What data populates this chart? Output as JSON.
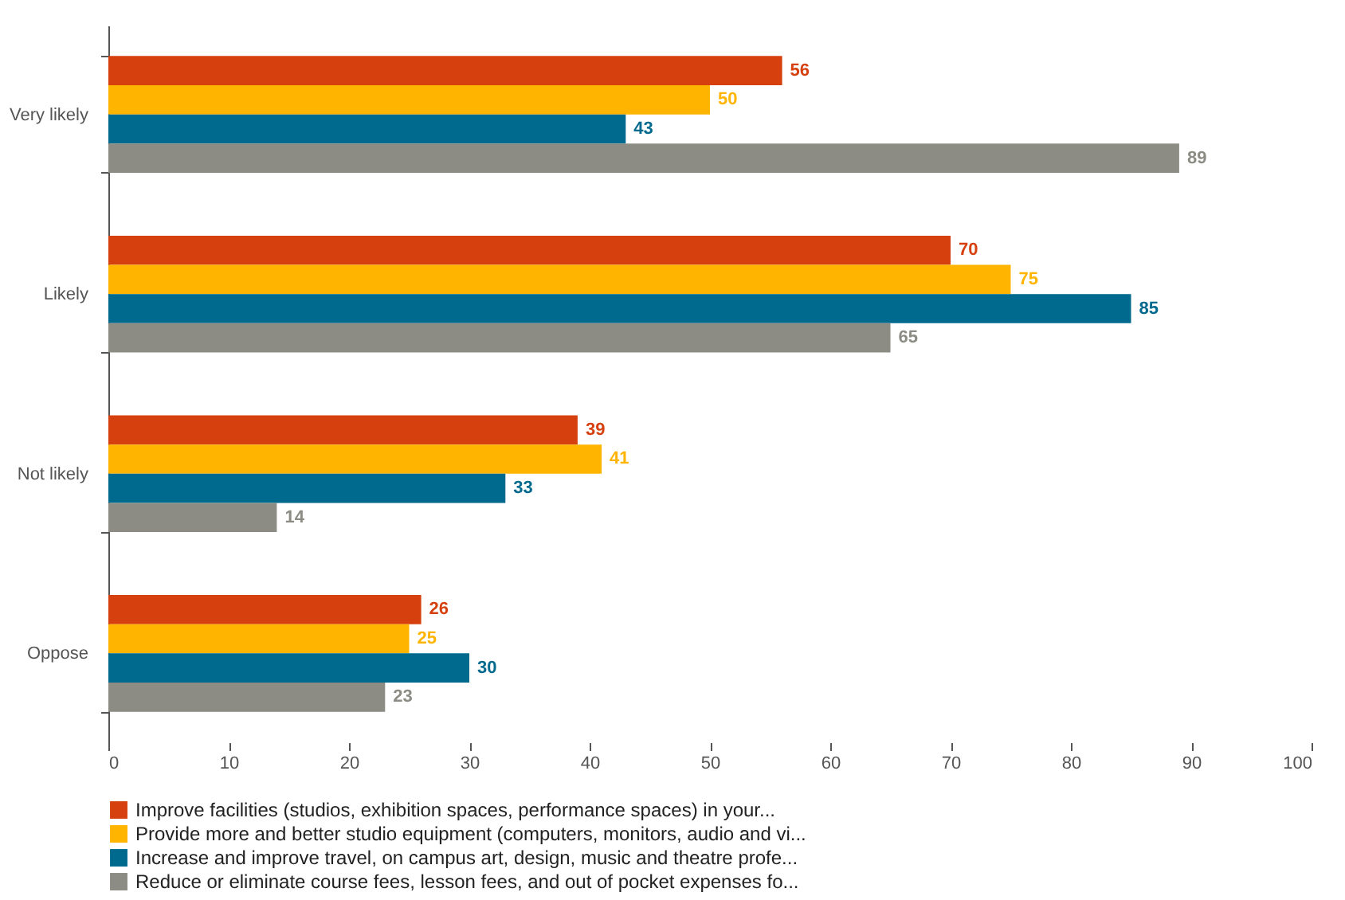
{
  "chart_data": {
    "type": "bar",
    "orientation": "horizontal",
    "categories": [
      "Very likely",
      "Likely",
      "Not likely",
      "Oppose"
    ],
    "series": [
      {
        "name": "Improve facilities (studios, exhibition spaces, performance spaces) in your...",
        "color": "#d6400e",
        "values": [
          56,
          70,
          39,
          26
        ]
      },
      {
        "name": "Provide more and better studio equipment (computers, monitors, audio and vi...",
        "color": "#ffb400",
        "values": [
          50,
          75,
          41,
          25
        ]
      },
      {
        "name": "Increase and improve travel, on campus art, design, music and theatre profe...",
        "color": "#006a8e",
        "values": [
          43,
          85,
          33,
          30
        ]
      },
      {
        "name": "Reduce or eliminate course fees, lesson fees, and out of pocket expenses fo...",
        "color": "#8c8c84",
        "values": [
          89,
          65,
          14,
          23
        ]
      }
    ],
    "xlim": [
      0,
      100
    ],
    "xticks": [
      0,
      10,
      20,
      30,
      40,
      50,
      60,
      70,
      80,
      90,
      100
    ],
    "data_labels": true,
    "grid": false,
    "legend": "bottom"
  }
}
